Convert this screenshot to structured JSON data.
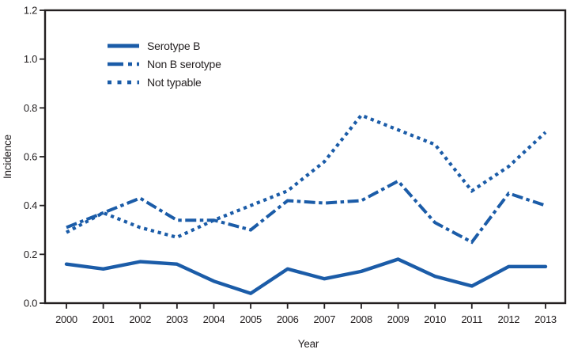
{
  "figure_title": "",
  "colors": {
    "line": "#1B5CA8",
    "axis": "#231f20",
    "text": "#231f20",
    "background": "#ffffff"
  },
  "chart_data": {
    "type": "line",
    "title": "",
    "xlabel": "Year",
    "ylabel": "Incidence",
    "x": [
      2000,
      2001,
      2002,
      2003,
      2004,
      2005,
      2006,
      2007,
      2008,
      2009,
      2010,
      2011,
      2012,
      2013
    ],
    "ylim": [
      0.0,
      1.2
    ],
    "yticks": [
      "0.0",
      "0.2",
      "0.4",
      "0.6",
      "0.8",
      "1.0",
      "1.2"
    ],
    "grid": false,
    "legend_position": "top-left-inside",
    "series": [
      {
        "name": "Serotype B",
        "style": "solid",
        "values": [
          0.16,
          0.14,
          0.17,
          0.16,
          0.09,
          0.04,
          0.14,
          0.1,
          0.13,
          0.18,
          0.11,
          0.07,
          0.15,
          0.15
        ]
      },
      {
        "name": "Non B serotype",
        "style": "dash-dot",
        "values": [
          0.31,
          0.37,
          0.43,
          0.34,
          0.34,
          0.3,
          0.42,
          0.41,
          0.42,
          0.5,
          0.33,
          0.25,
          0.45,
          0.4
        ]
      },
      {
        "name": "Not typable",
        "style": "dotted",
        "values": [
          0.29,
          0.37,
          0.31,
          0.27,
          0.34,
          0.4,
          0.46,
          0.58,
          0.77,
          0.71,
          0.65,
          0.46,
          0.56,
          0.7
        ]
      }
    ]
  }
}
